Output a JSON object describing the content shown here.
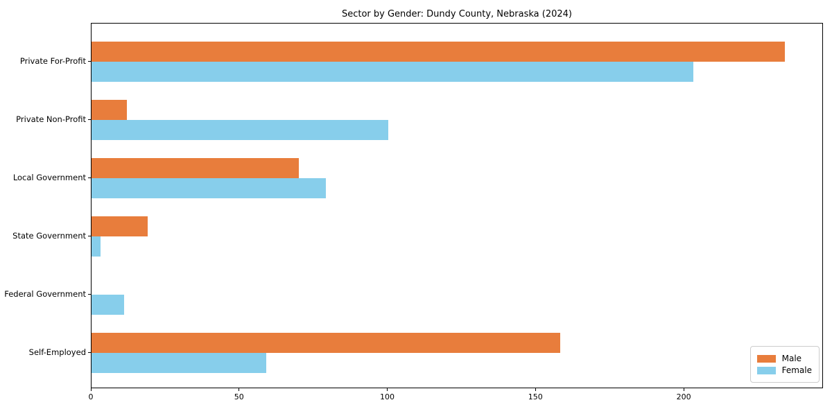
{
  "chart_data": {
    "type": "bar",
    "orientation": "horizontal",
    "title": "Sector by Gender: Dundy County, Nebraska (2024)",
    "categories": [
      "Private For-Profit",
      "Private Non-Profit",
      "Local Government",
      "State Government",
      "Federal Government",
      "Self-Employed"
    ],
    "series": [
      {
        "name": "Male",
        "color": "#e87d3c",
        "values": [
          234,
          12,
          70,
          19,
          0,
          158
        ]
      },
      {
        "name": "Female",
        "color": "#87ceeb",
        "values": [
          203,
          100,
          79,
          3,
          11,
          59
        ]
      }
    ],
    "xlabel": "",
    "ylabel": "",
    "xlim": [
      0,
      247
    ],
    "xticks": [
      0,
      50,
      100,
      150,
      200
    ],
    "grid": false,
    "legend_position": "lower right",
    "legend_labels": [
      "Male",
      "Female"
    ]
  }
}
